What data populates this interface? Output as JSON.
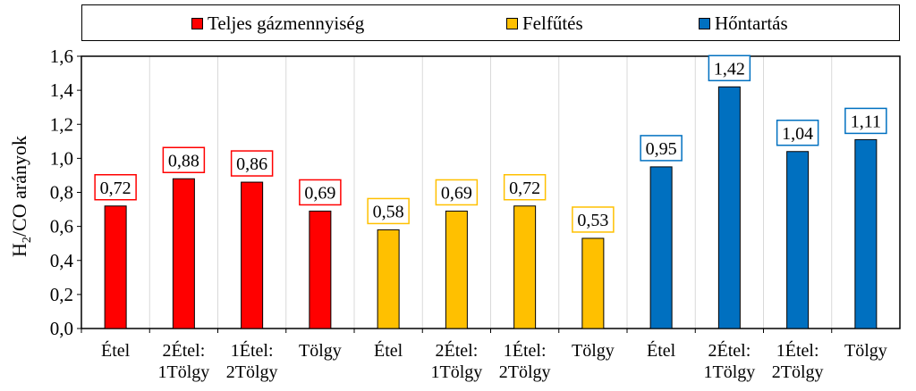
{
  "chart_data": {
    "type": "bar",
    "ylabel_main": "H",
    "ylabel_sub": "2",
    "ylabel_rest": "/CO arányok",
    "ylim": [
      0,
      1.6
    ],
    "yticks": [
      "0,0",
      "0,2",
      "0,4",
      "0,6",
      "0,8",
      "1,0",
      "1,2",
      "1,4",
      "1,6"
    ],
    "grid": "vertical",
    "legend_position": "top",
    "series": [
      {
        "name": "Teljes gázmennyiség",
        "color": "#ff0000"
      },
      {
        "name": "Felfűtés",
        "color": "#ffc000"
      },
      {
        "name": "Hőntartás",
        "color": "#0070c0"
      }
    ],
    "bars": [
      {
        "category": [
          "Étel"
        ],
        "value": 0.72,
        "label": "0,72",
        "series": 0
      },
      {
        "category": [
          "2Étel:",
          "1Tölgy"
        ],
        "value": 0.88,
        "label": "0,88",
        "series": 0
      },
      {
        "category": [
          "1Étel:",
          "2Tölgy"
        ],
        "value": 0.86,
        "label": "0,86",
        "series": 0
      },
      {
        "category": [
          "Tölgy"
        ],
        "value": 0.69,
        "label": "0,69",
        "series": 0
      },
      {
        "category": [
          "Étel"
        ],
        "value": 0.58,
        "label": "0,58",
        "series": 1
      },
      {
        "category": [
          "2Étel:",
          "1Tölgy"
        ],
        "value": 0.69,
        "label": "0,69",
        "series": 1
      },
      {
        "category": [
          "1Étel:",
          "2Tölgy"
        ],
        "value": 0.72,
        "label": "0,72",
        "series": 1
      },
      {
        "category": [
          "Tölgy"
        ],
        "value": 0.53,
        "label": "0,53",
        "series": 1
      },
      {
        "category": [
          "Étel"
        ],
        "value": 0.95,
        "label": "0,95",
        "series": 2
      },
      {
        "category": [
          "2Étel:",
          "1Tölgy"
        ],
        "value": 1.42,
        "label": "1,42",
        "series": 2
      },
      {
        "category": [
          "1Étel:",
          "2Tölgy"
        ],
        "value": 1.04,
        "label": "1,04",
        "series": 2
      },
      {
        "category": [
          "Tölgy"
        ],
        "value": 1.11,
        "label": "1,11",
        "series": 2
      }
    ]
  }
}
